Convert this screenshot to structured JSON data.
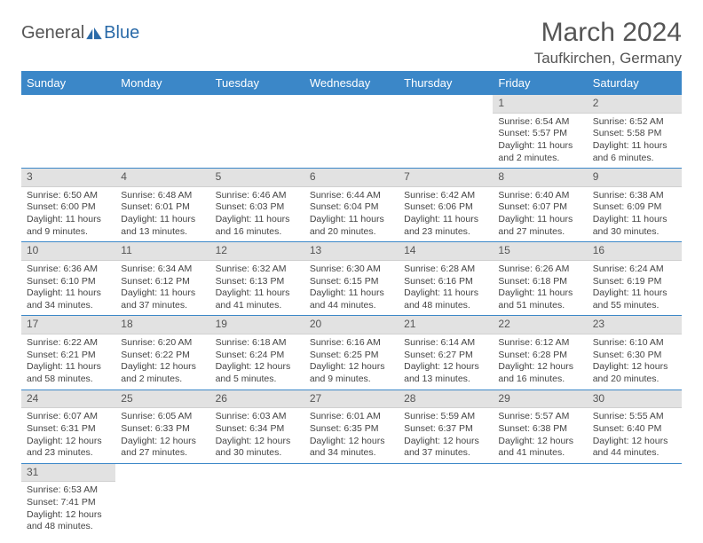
{
  "logo": {
    "part1": "General",
    "part2": "Blue"
  },
  "title": "March 2024",
  "location": "Taufkirchen, Germany",
  "header_bg": "#3b87c8",
  "daynum_bg": "#e2e2e2",
  "text_color": "#444",
  "days_of_week": [
    "Sunday",
    "Monday",
    "Tuesday",
    "Wednesday",
    "Thursday",
    "Friday",
    "Saturday"
  ],
  "weeks": [
    [
      null,
      null,
      null,
      null,
      null,
      {
        "n": "1",
        "sr": "Sunrise: 6:54 AM",
        "ss": "Sunset: 5:57 PM",
        "dl": "Daylight: 11 hours and 2 minutes."
      },
      {
        "n": "2",
        "sr": "Sunrise: 6:52 AM",
        "ss": "Sunset: 5:58 PM",
        "dl": "Daylight: 11 hours and 6 minutes."
      }
    ],
    [
      {
        "n": "3",
        "sr": "Sunrise: 6:50 AM",
        "ss": "Sunset: 6:00 PM",
        "dl": "Daylight: 11 hours and 9 minutes."
      },
      {
        "n": "4",
        "sr": "Sunrise: 6:48 AM",
        "ss": "Sunset: 6:01 PM",
        "dl": "Daylight: 11 hours and 13 minutes."
      },
      {
        "n": "5",
        "sr": "Sunrise: 6:46 AM",
        "ss": "Sunset: 6:03 PM",
        "dl": "Daylight: 11 hours and 16 minutes."
      },
      {
        "n": "6",
        "sr": "Sunrise: 6:44 AM",
        "ss": "Sunset: 6:04 PM",
        "dl": "Daylight: 11 hours and 20 minutes."
      },
      {
        "n": "7",
        "sr": "Sunrise: 6:42 AM",
        "ss": "Sunset: 6:06 PM",
        "dl": "Daylight: 11 hours and 23 minutes."
      },
      {
        "n": "8",
        "sr": "Sunrise: 6:40 AM",
        "ss": "Sunset: 6:07 PM",
        "dl": "Daylight: 11 hours and 27 minutes."
      },
      {
        "n": "9",
        "sr": "Sunrise: 6:38 AM",
        "ss": "Sunset: 6:09 PM",
        "dl": "Daylight: 11 hours and 30 minutes."
      }
    ],
    [
      {
        "n": "10",
        "sr": "Sunrise: 6:36 AM",
        "ss": "Sunset: 6:10 PM",
        "dl": "Daylight: 11 hours and 34 minutes."
      },
      {
        "n": "11",
        "sr": "Sunrise: 6:34 AM",
        "ss": "Sunset: 6:12 PM",
        "dl": "Daylight: 11 hours and 37 minutes."
      },
      {
        "n": "12",
        "sr": "Sunrise: 6:32 AM",
        "ss": "Sunset: 6:13 PM",
        "dl": "Daylight: 11 hours and 41 minutes."
      },
      {
        "n": "13",
        "sr": "Sunrise: 6:30 AM",
        "ss": "Sunset: 6:15 PM",
        "dl": "Daylight: 11 hours and 44 minutes."
      },
      {
        "n": "14",
        "sr": "Sunrise: 6:28 AM",
        "ss": "Sunset: 6:16 PM",
        "dl": "Daylight: 11 hours and 48 minutes."
      },
      {
        "n": "15",
        "sr": "Sunrise: 6:26 AM",
        "ss": "Sunset: 6:18 PM",
        "dl": "Daylight: 11 hours and 51 minutes."
      },
      {
        "n": "16",
        "sr": "Sunrise: 6:24 AM",
        "ss": "Sunset: 6:19 PM",
        "dl": "Daylight: 11 hours and 55 minutes."
      }
    ],
    [
      {
        "n": "17",
        "sr": "Sunrise: 6:22 AM",
        "ss": "Sunset: 6:21 PM",
        "dl": "Daylight: 11 hours and 58 minutes."
      },
      {
        "n": "18",
        "sr": "Sunrise: 6:20 AM",
        "ss": "Sunset: 6:22 PM",
        "dl": "Daylight: 12 hours and 2 minutes."
      },
      {
        "n": "19",
        "sr": "Sunrise: 6:18 AM",
        "ss": "Sunset: 6:24 PM",
        "dl": "Daylight: 12 hours and 5 minutes."
      },
      {
        "n": "20",
        "sr": "Sunrise: 6:16 AM",
        "ss": "Sunset: 6:25 PM",
        "dl": "Daylight: 12 hours and 9 minutes."
      },
      {
        "n": "21",
        "sr": "Sunrise: 6:14 AM",
        "ss": "Sunset: 6:27 PM",
        "dl": "Daylight: 12 hours and 13 minutes."
      },
      {
        "n": "22",
        "sr": "Sunrise: 6:12 AM",
        "ss": "Sunset: 6:28 PM",
        "dl": "Daylight: 12 hours and 16 minutes."
      },
      {
        "n": "23",
        "sr": "Sunrise: 6:10 AM",
        "ss": "Sunset: 6:30 PM",
        "dl": "Daylight: 12 hours and 20 minutes."
      }
    ],
    [
      {
        "n": "24",
        "sr": "Sunrise: 6:07 AM",
        "ss": "Sunset: 6:31 PM",
        "dl": "Daylight: 12 hours and 23 minutes."
      },
      {
        "n": "25",
        "sr": "Sunrise: 6:05 AM",
        "ss": "Sunset: 6:33 PM",
        "dl": "Daylight: 12 hours and 27 minutes."
      },
      {
        "n": "26",
        "sr": "Sunrise: 6:03 AM",
        "ss": "Sunset: 6:34 PM",
        "dl": "Daylight: 12 hours and 30 minutes."
      },
      {
        "n": "27",
        "sr": "Sunrise: 6:01 AM",
        "ss": "Sunset: 6:35 PM",
        "dl": "Daylight: 12 hours and 34 minutes."
      },
      {
        "n": "28",
        "sr": "Sunrise: 5:59 AM",
        "ss": "Sunset: 6:37 PM",
        "dl": "Daylight: 12 hours and 37 minutes."
      },
      {
        "n": "29",
        "sr": "Sunrise: 5:57 AM",
        "ss": "Sunset: 6:38 PM",
        "dl": "Daylight: 12 hours and 41 minutes."
      },
      {
        "n": "30",
        "sr": "Sunrise: 5:55 AM",
        "ss": "Sunset: 6:40 PM",
        "dl": "Daylight: 12 hours and 44 minutes."
      }
    ],
    [
      {
        "n": "31",
        "sr": "Sunrise: 6:53 AM",
        "ss": "Sunset: 7:41 PM",
        "dl": "Daylight: 12 hours and 48 minutes."
      },
      null,
      null,
      null,
      null,
      null,
      null
    ]
  ]
}
